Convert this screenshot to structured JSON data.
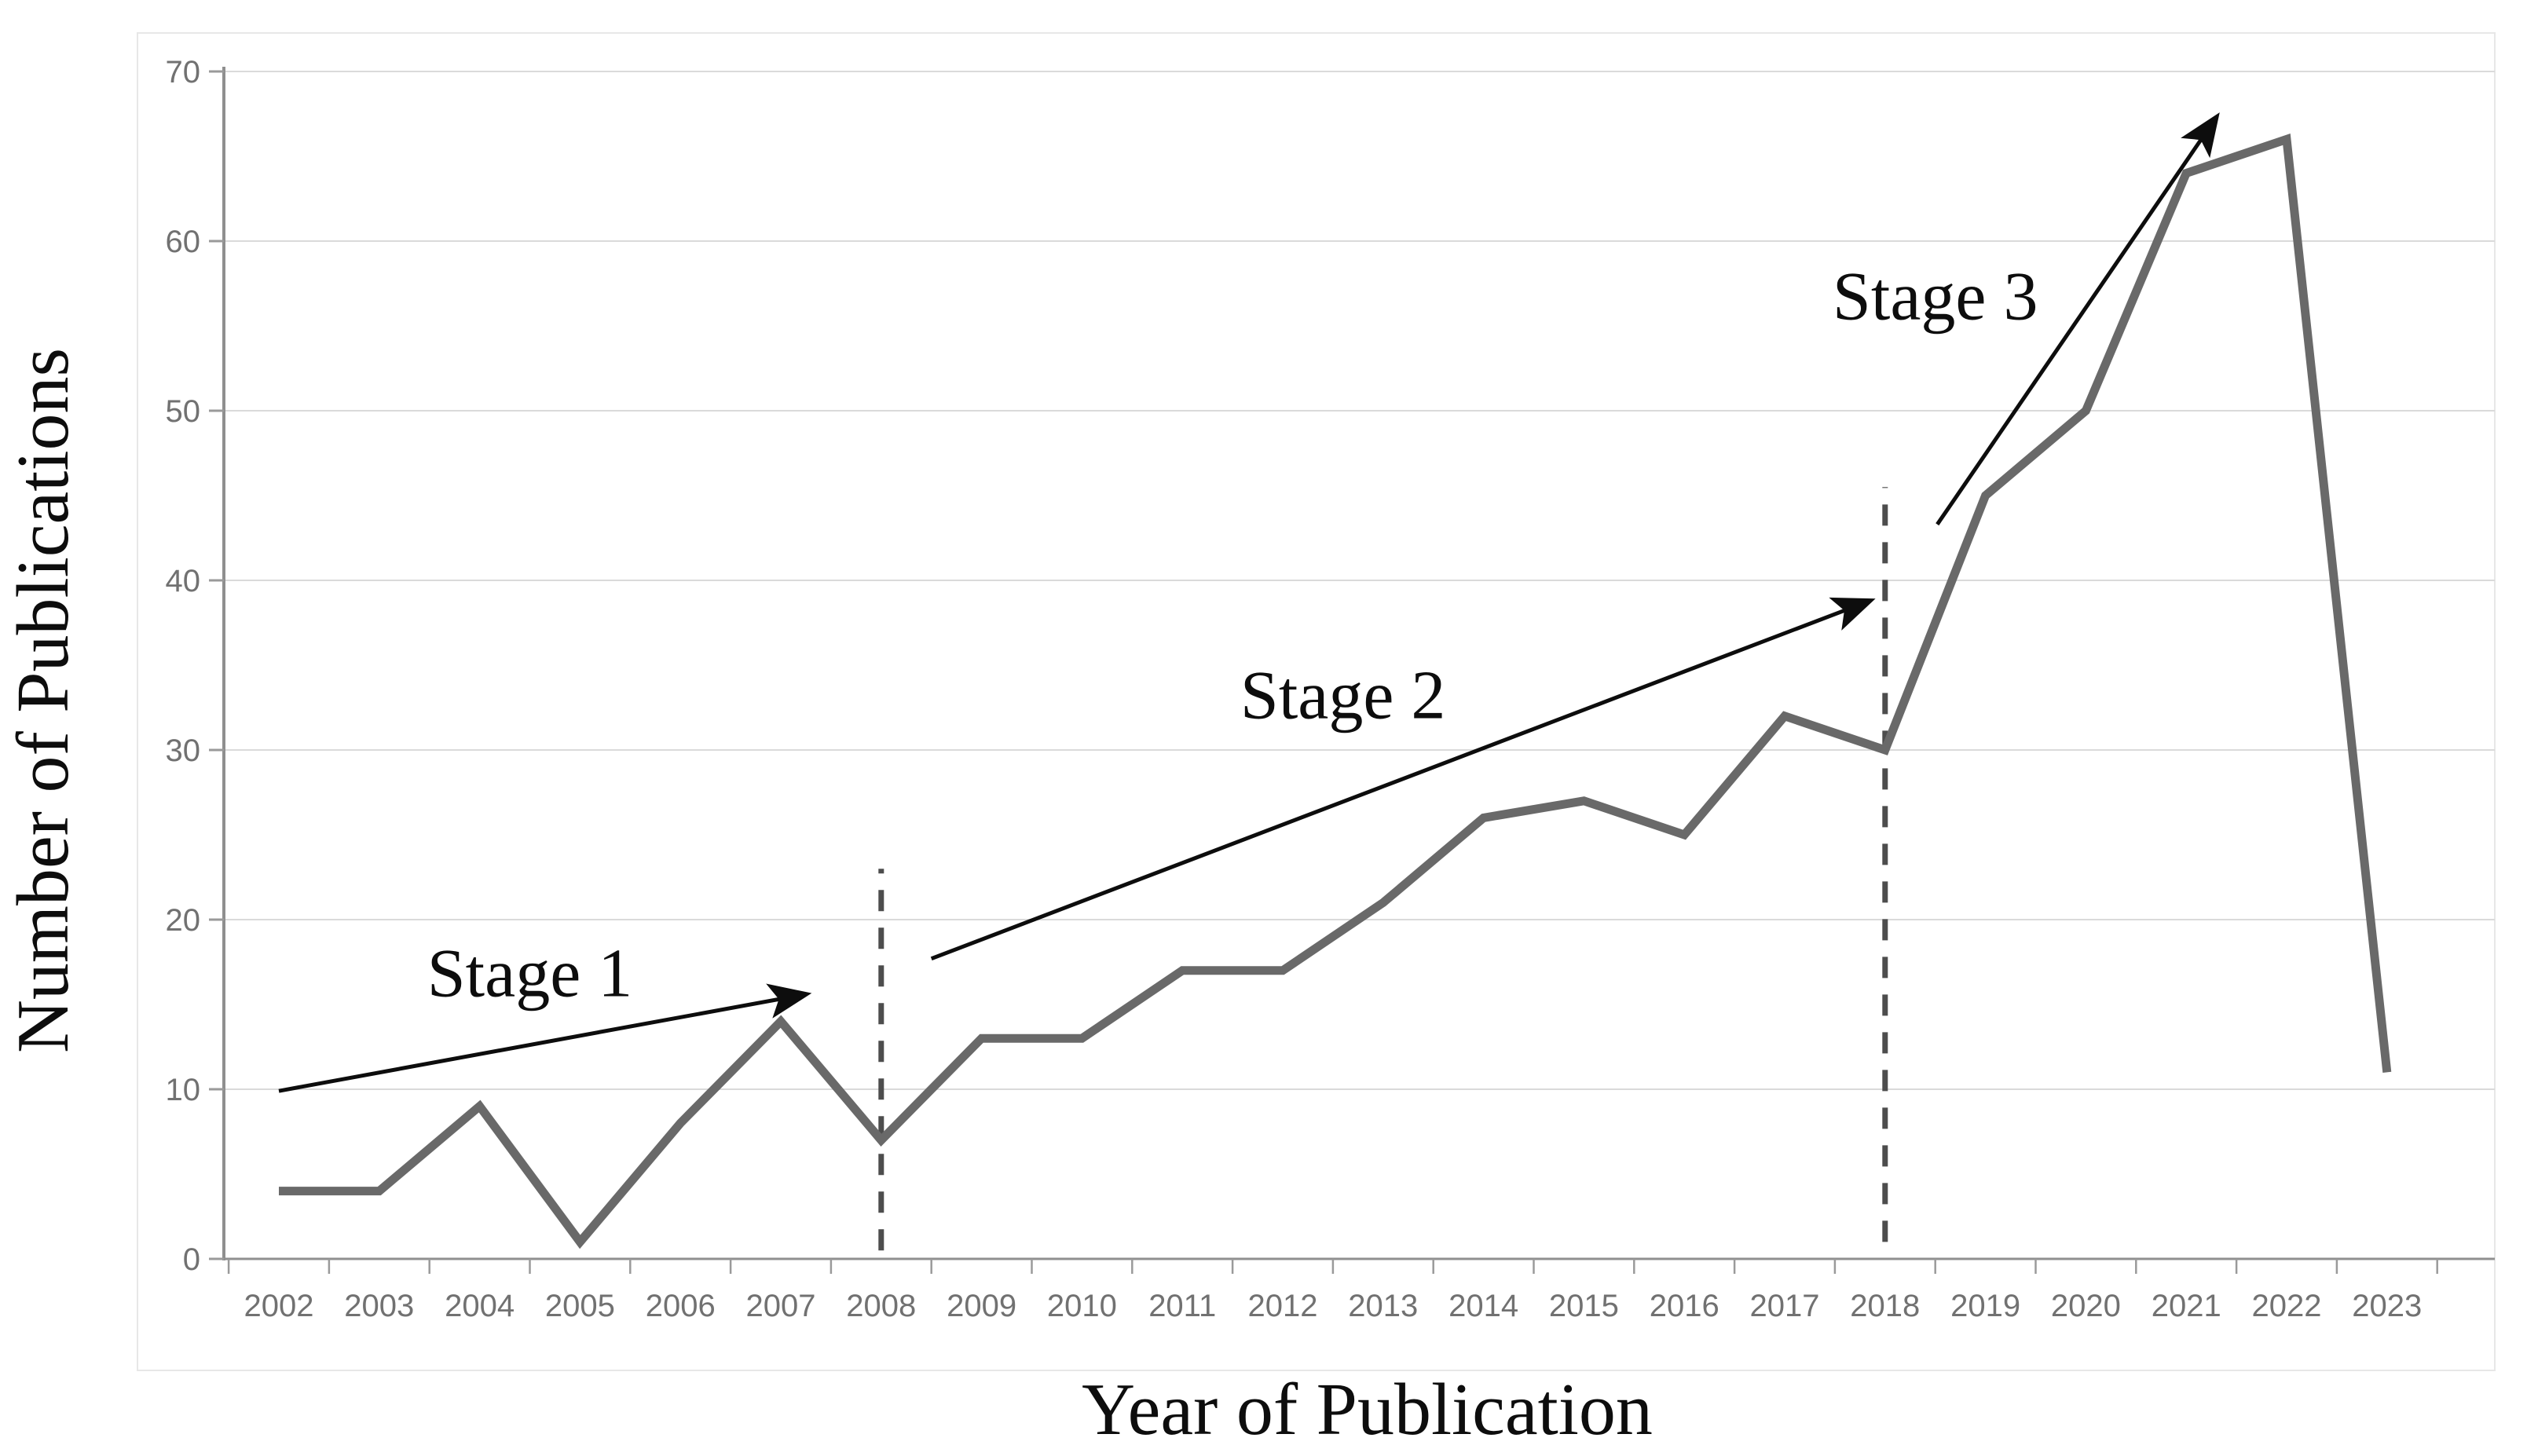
{
  "figure": {
    "y_axis_title": "Number of Publications",
    "x_axis_title": "Year of Publication"
  },
  "chart_data": {
    "type": "line",
    "title": "",
    "xlabel": "Year of Publication",
    "ylabel": "Number of Publications",
    "x": [
      2002,
      2003,
      2004,
      2005,
      2006,
      2007,
      2008,
      2009,
      2010,
      2011,
      2012,
      2013,
      2014,
      2015,
      2016,
      2017,
      2018,
      2019,
      2020,
      2021,
      2022,
      2023
    ],
    "series": [
      {
        "name": "Number of Publications",
        "values": [
          4,
          4,
          9,
          1,
          8,
          14,
          7,
          13,
          13,
          17,
          17,
          21,
          26,
          27,
          25,
          32,
          30,
          45,
          50,
          64,
          66,
          11
        ]
      }
    ],
    "ylim": [
      0,
      70
    ],
    "yticks": [
      0,
      10,
      20,
      30,
      40,
      50,
      60,
      70
    ],
    "grid": "horizontal-only",
    "legend": "none",
    "line_color": "#696969",
    "grid_color": "#dadada",
    "axis_color": "#8f8f8f",
    "tick_label_color": "#717171",
    "annotation_color": "#0d0d0d",
    "dash_color": "#4d4d4d",
    "annotations": [
      {
        "id": "stage1",
        "text": "Stage 1",
        "text_at": {
          "year": 2004.5,
          "value": 16.8
        },
        "arrow": {
          "from": {
            "year": 2002.0,
            "value": 9.9
          },
          "to": {
            "year": 2007.25,
            "value": 15.6
          }
        }
      },
      {
        "id": "stage2",
        "text": "Stage 2",
        "text_at": {
          "year": 2012.6,
          "value": 33.2
        },
        "arrow": {
          "from": {
            "year": 2008.5,
            "value": 17.7
          },
          "to": {
            "year": 2017.85,
            "value": 38.8
          }
        }
      },
      {
        "id": "stage3",
        "text": "Stage 3",
        "text_at": {
          "year": 2018.5,
          "value": 56.7
        },
        "arrow": {
          "from": {
            "year": 2018.52,
            "value": 43.3
          },
          "to": {
            "year": 2021.3,
            "value": 67.3
          }
        }
      }
    ],
    "dashed_vlines": [
      {
        "x_year": 2008,
        "from_value": 0.5,
        "to_value": 23
      },
      {
        "x_year": 2018,
        "from_value": 1.0,
        "to_value": 45.5
      }
    ]
  }
}
